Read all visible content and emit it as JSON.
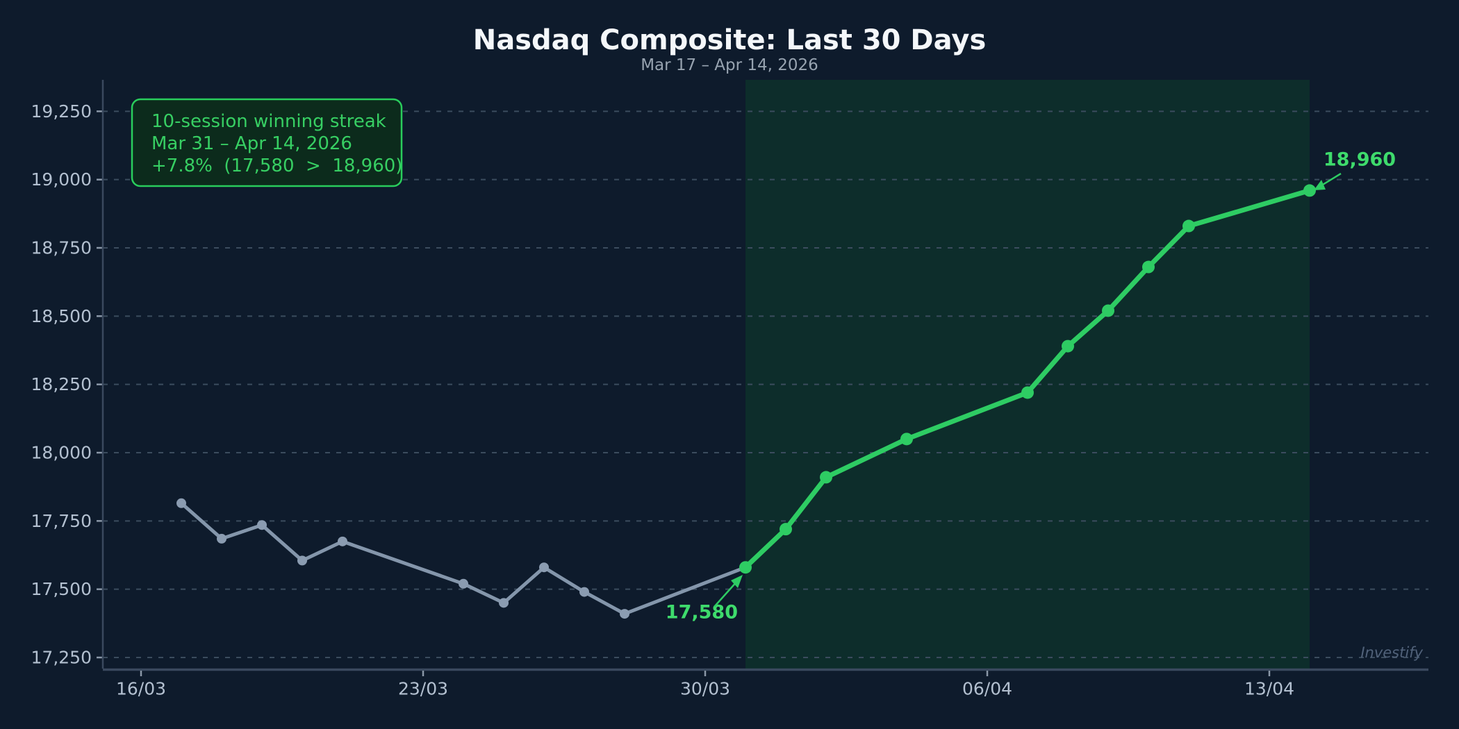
{
  "header": {
    "title": "Nasdaq Composite: Last 30 Days",
    "subtitle": "Mar 17 – Apr 14, 2026"
  },
  "annotation_box": {
    "line1": "10-session winning streak",
    "line2": "Mar 31 – Apr 14, 2026",
    "line3": "+7.8%  (17,580  >  18,960)"
  },
  "callouts": {
    "streak_start_label": "17,580",
    "streak_end_label": "18,960"
  },
  "watermark": "Investify",
  "colors": {
    "background": "#0e1b2c",
    "band": "#0d2d2b",
    "grid": "#3b4c5e",
    "spine": "#3a495e",
    "tick_mark": "#8b98a8",
    "axis_labels": "#b3c0d0",
    "title": "#f4f7fa",
    "subtitle": "#97a3b0",
    "gray_line": "#8496ab",
    "gray_marker": "#8b9cb1",
    "green": "#2ecc63",
    "green_label": "#3edb6c",
    "annotation_text": "#37cf63",
    "annotation_border": "#29cd5c",
    "annotation_fill": "#0c2b1c",
    "watermark": "#51627a"
  },
  "chart_data": {
    "type": "line",
    "title": "Nasdaq Composite: Last 30 Days",
    "subtitle": "Mar 17 – Apr 14, 2026",
    "x_unit": "days after 16/03 tick",
    "grid": "horizontal dashed",
    "legend": "none",
    "ylim": [
      17250,
      19250
    ],
    "y_ticks": {
      "values": [
        17250,
        17500,
        17750,
        18000,
        18250,
        18500,
        18750,
        19000,
        19250
      ],
      "labels": [
        "17,250",
        "17,500",
        "17,750",
        "18,000",
        "18,250",
        "18,500",
        "18,750",
        "19,000",
        "19,250"
      ]
    },
    "x_ticks": {
      "day_offsets": [
        0,
        7,
        14,
        21,
        28
      ],
      "labels": [
        "16/03",
        "23/03",
        "30/03",
        "06/04",
        "13/04"
      ]
    },
    "series": [
      {
        "name": "pre-streak",
        "color_key": "gray_line",
        "x_day_offsets": [
          1,
          2,
          3,
          4,
          5,
          8,
          9,
          10,
          11,
          12
        ],
        "values": [
          17815,
          17685,
          17735,
          17605,
          17675,
          17520,
          17450,
          17580,
          17490,
          17410
        ]
      },
      {
        "name": "winning-streak",
        "color_key": "green",
        "x_day_offsets": [
          15,
          16,
          17,
          19,
          22,
          23,
          24,
          25,
          26,
          29
        ],
        "values": [
          17580,
          17720,
          17910,
          18050,
          18220,
          18390,
          18520,
          18680,
          18830,
          18960
        ]
      }
    ],
    "highlight_band": {
      "x_start_offset": 15,
      "x_end_offset": 29
    },
    "annotations": [
      {
        "text": "17,580",
        "attached_value": 17580,
        "attached_offset": 15
      },
      {
        "text": "18,960",
        "attached_value": 18960,
        "attached_offset": 29
      }
    ]
  }
}
